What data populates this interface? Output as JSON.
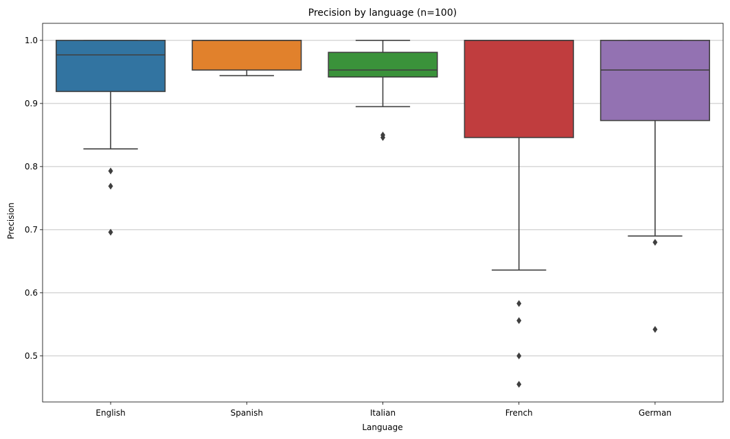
{
  "chart_data": {
    "type": "box",
    "title": "Precision by language (n=100)",
    "xlabel": "Language",
    "ylabel": "Precision",
    "ylim": [
      0.427,
      1.027
    ],
    "yticks": [
      0.5,
      0.6,
      0.7,
      0.8,
      0.9,
      1.0
    ],
    "ytick_labels": [
      "0.5",
      "0.6",
      "0.7",
      "0.8",
      "0.9",
      "1.0"
    ],
    "grid": "y",
    "legend": "none",
    "categories": [
      "English",
      "Spanish",
      "Italian",
      "French",
      "German"
    ],
    "boxes": [
      {
        "category": "English",
        "color": "#3274a1",
        "whisker_low": 0.828,
        "q1": 0.919,
        "median": 0.977,
        "q3": 1.0,
        "whisker_high": 1.0,
        "outliers": [
          0.793,
          0.769,
          0.696
        ]
      },
      {
        "category": "Spanish",
        "color": "#e1812c",
        "whisker_low": 0.944,
        "q1": 0.953,
        "median": 1.0,
        "q3": 1.0,
        "whisker_high": 1.0,
        "outliers": []
      },
      {
        "category": "Italian",
        "color": "#3a923a",
        "whisker_low": 0.895,
        "q1": 0.942,
        "median": 0.953,
        "q3": 0.981,
        "whisker_high": 1.0,
        "outliers": [
          0.85,
          0.846
        ]
      },
      {
        "category": "French",
        "color": "#c03d3e",
        "whisker_low": 0.636,
        "q1": 0.846,
        "median": 1.0,
        "q3": 1.0,
        "whisker_high": 1.0,
        "outliers": [
          0.583,
          0.556,
          0.5,
          0.455
        ]
      },
      {
        "category": "German",
        "color": "#9372b2",
        "whisker_low": 0.69,
        "q1": 0.873,
        "median": 0.953,
        "q3": 1.0,
        "whisker_high": 1.0,
        "outliers": [
          0.68,
          0.542
        ]
      }
    ]
  }
}
